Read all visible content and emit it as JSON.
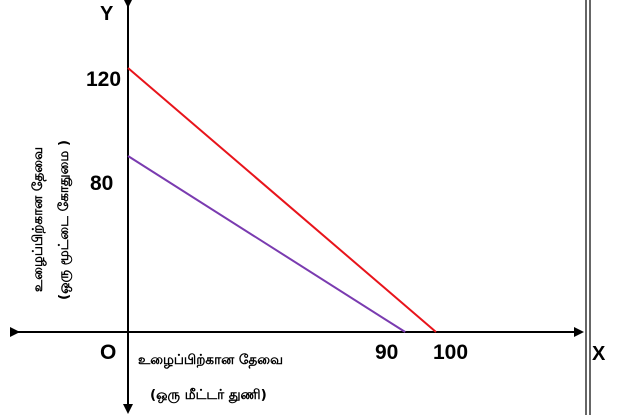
{
  "chart_data": {
    "type": "line",
    "x_axis_name": "X",
    "y_axis_name": "Y",
    "origin_label": "O",
    "xlabel": "உழைப்பிற்கான தேவை",
    "xlabel_unit": "(ஒரு மீட்டர் துணி)",
    "ylabel": "உழைப்பிற்கான தேவை",
    "ylabel_unit": "(ஒரு மூட்டை கோதுமை )",
    "xlim": [
      0,
      100
    ],
    "ylim": [
      0,
      120
    ],
    "x_ticks": [
      "90",
      "100"
    ],
    "y_ticks": [
      "120",
      "80"
    ],
    "series": [
      {
        "color": "#e8141b",
        "points": [
          [
            0,
            120
          ],
          [
            100,
            0
          ]
        ]
      },
      {
        "color": "#7a3bb0",
        "points": [
          [
            0,
            80
          ],
          [
            90,
            0
          ]
        ]
      }
    ]
  }
}
